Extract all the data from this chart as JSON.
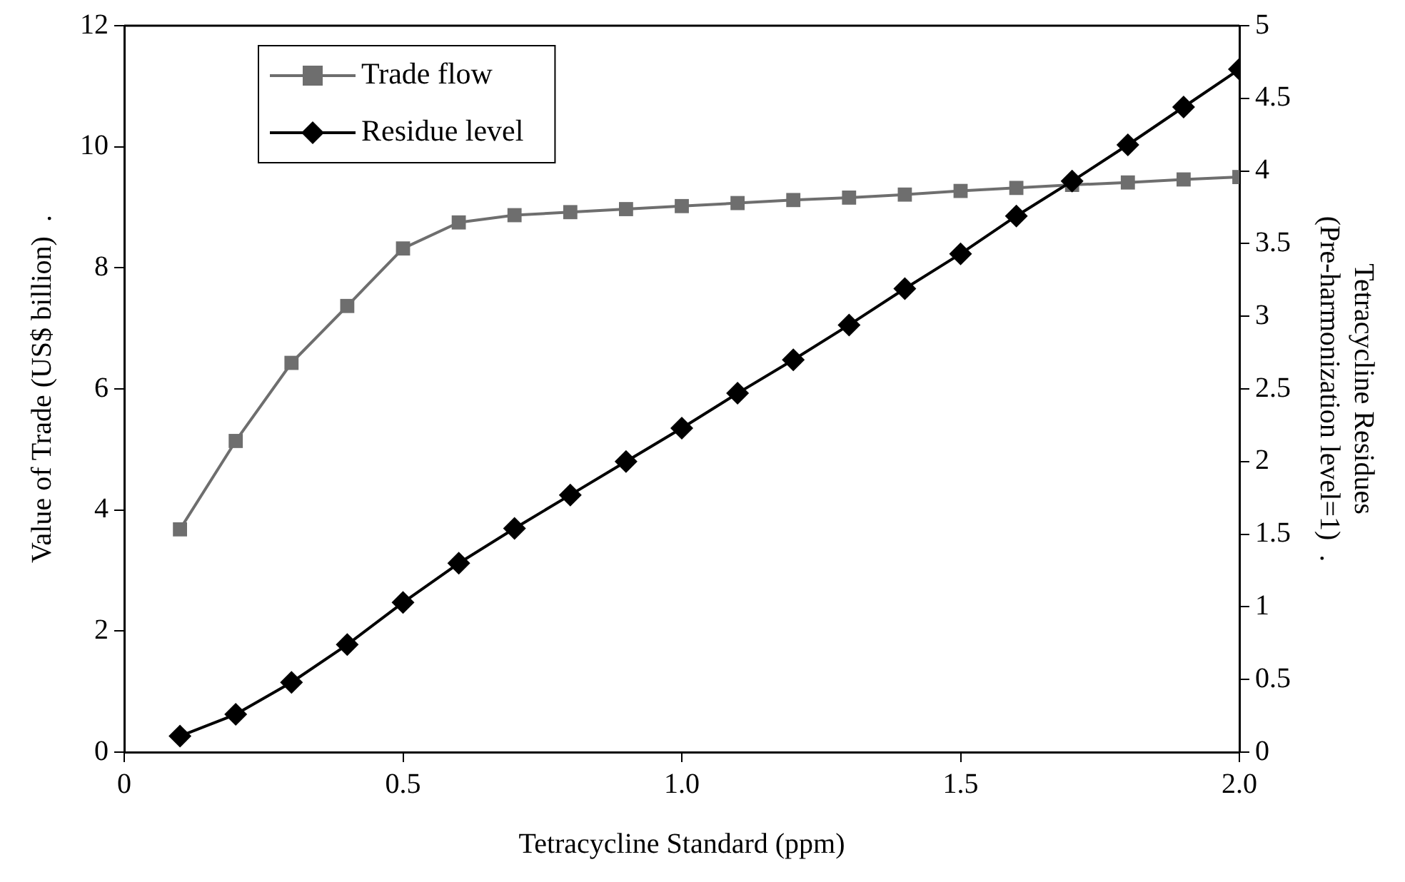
{
  "chart_data": {
    "type": "line",
    "xlabel": "Tetracycline Standard (ppm)",
    "ylabel": "Value of Trade (US$ billion)  .",
    "y2label": "Tetracycline Residues\n(Pre-harmonization level=1)  .",
    "x": [
      0.1,
      0.2,
      0.3,
      0.4,
      0.5,
      0.6,
      0.7,
      0.8,
      0.9,
      1.0,
      1.1,
      1.2,
      1.3,
      1.4,
      1.5,
      1.6,
      1.7,
      1.8,
      1.9,
      2.0
    ],
    "xlim": [
      0,
      2
    ],
    "xticks": [
      0,
      0.5,
      {
        "value": 1,
        "label": "1.0"
      },
      1.5,
      {
        "value": 2,
        "label": "2.0"
      }
    ],
    "ylim": [
      0,
      12
    ],
    "yticks": [
      0,
      2,
      4,
      6,
      8,
      10,
      12
    ],
    "y2lim": [
      0,
      5
    ],
    "y2ticks": [
      0,
      0.5,
      1,
      1.5,
      2,
      2.5,
      3,
      3.5,
      4,
      4.5,
      5
    ],
    "grid": false,
    "legend": "top left",
    "series": [
      {
        "name": "Trade flow",
        "color": "#6e6e6e",
        "marker": "square",
        "values": [
          3.68,
          5.14,
          6.43,
          7.37,
          8.32,
          8.75,
          8.87,
          8.92,
          8.97,
          9.02,
          9.07,
          9.12,
          9.16,
          9.21,
          9.27,
          9.32,
          9.37,
          9.41,
          9.46,
          9.5
        ]
      },
      {
        "name": "Residue level",
        "color": "#000000",
        "marker": "diamond",
        "axis": "y2",
        "values": [
          0.11,
          0.26,
          0.48,
          0.74,
          1.03,
          1.3,
          1.54,
          1.77,
          2.0,
          2.23,
          2.47,
          2.7,
          2.94,
          3.19,
          3.43,
          3.69,
          3.93,
          4.18,
          4.44,
          4.7
        ]
      }
    ]
  }
}
